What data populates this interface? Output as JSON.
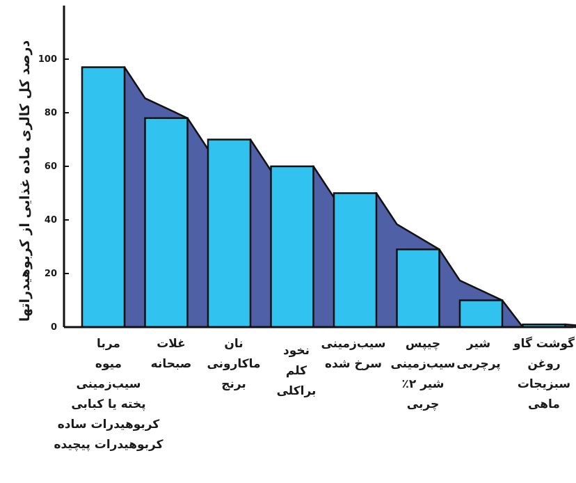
{
  "chart_data": {
    "type": "bar",
    "ylabel": "درصد کل کالری ماده غذایی از کربوهیدراتها",
    "xlabel": "",
    "ylim": [
      0,
      120
    ],
    "yticks": [
      0,
      20,
      40,
      60,
      80,
      100
    ],
    "categories": [
      [
        "مربا",
        "میوه",
        "سیب‌زمینی",
        "پخته یا کبابی",
        "کربوهیدرات ساده",
        "کربوهیدرات پیچیده"
      ],
      [
        "غلات",
        "صبحانه"
      ],
      [
        "نان",
        "ماکارونی",
        "برنج"
      ],
      [
        "نخود",
        "کلم",
        "براکلی"
      ],
      [
        "سیب‌زمینی",
        "سرخ شده"
      ],
      [
        "چیپس",
        "سیب‌زمینی",
        "شیر ۲٪",
        "چربی"
      ],
      [
        "شیر",
        "پرچربی"
      ],
      [
        "گوشت گاو",
        "روغن",
        "سبزیجات",
        "ماهی"
      ]
    ],
    "values": [
      97,
      78,
      70,
      60,
      50,
      29,
      10,
      1
    ],
    "grid": false,
    "legend": "none",
    "colors": {
      "bar": "#31c2f0",
      "shadow": "#5060a6",
      "stroke": "#111111"
    }
  }
}
